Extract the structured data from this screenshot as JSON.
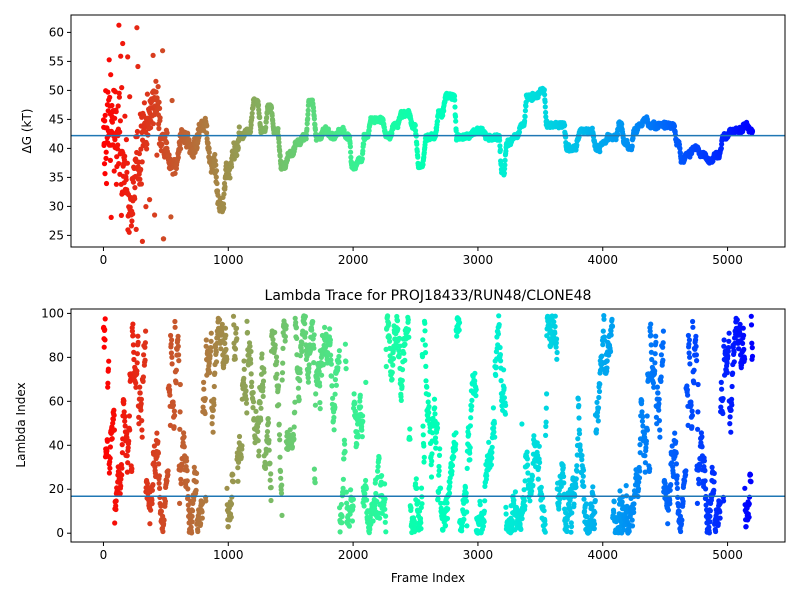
{
  "chart_data": [
    {
      "type": "scatter",
      "title": "",
      "xlabel": "",
      "ylabel": "ΔG (kT)",
      "xlim": [
        -260,
        5460
      ],
      "ylim": [
        23,
        63
      ],
      "xticks": [
        0,
        1000,
        2000,
        3000,
        4000,
        5000
      ],
      "yticks": [
        25,
        30,
        35,
        40,
        45,
        50,
        55,
        60
      ],
      "colormap": "rainbow",
      "color_encoding": "frame index (red at start, purple at end)",
      "hline": {
        "y": 42.2,
        "color": "#1f77b4"
      },
      "x_max": 5200,
      "trace_keypoints": {
        "x": [
          0,
          60,
          110,
          160,
          220,
          280,
          340,
          420,
          480,
          560,
          640,
          720,
          800,
          880,
          940,
          1000,
          1050,
          1100,
          1160,
          1220,
          1280,
          1330,
          1380,
          1440,
          1500,
          1560,
          1610,
          1660,
          1720,
          1780,
          1840,
          1900,
          1960,
          2000,
          2060,
          2100,
          2160,
          2220,
          2280,
          2340,
          2400,
          2440,
          2480,
          2540,
          2600,
          2640,
          2700,
          2760,
          2800,
          2840,
          2900,
          3000,
          3100,
          3160,
          3200,
          3240,
          3300,
          3360,
          3400,
          3460,
          3520,
          3560,
          3600,
          3680,
          3720,
          3760,
          3840,
          3900,
          3960,
          4000,
          4060,
          4100,
          4140,
          4180,
          4220,
          4260,
          4300,
          4340,
          4380,
          4440,
          4500,
          4560,
          4600,
          4640,
          4680,
          4740,
          4800,
          4860,
          4920,
          4980,
          5040,
          5100,
          5140,
          5200
        ],
        "y": [
          40,
          45,
          42,
          37,
          30,
          38,
          44,
          48,
          41,
          37,
          42,
          40,
          44,
          37,
          30,
          36,
          39,
          42,
          43,
          48,
          43,
          47,
          43,
          37,
          39,
          41,
          42,
          48,
          42,
          43,
          42,
          43,
          42,
          37,
          38,
          42,
          45,
          45,
          42,
          44,
          46,
          46,
          44,
          37,
          42,
          42,
          46,
          49,
          49,
          42,
          42,
          43,
          42,
          42,
          36,
          41,
          42,
          44,
          49,
          49,
          50,
          44,
          44,
          44,
          40,
          40,
          43,
          43,
          40,
          41,
          42,
          42,
          44,
          41,
          40,
          43,
          44,
          45,
          44,
          44,
          44,
          44,
          41,
          38,
          39,
          40,
          39,
          38,
          39,
          42,
          43,
          43,
          44,
          43
        ]
      },
      "early_scatter": {
        "x_range": [
          0,
          600
        ],
        "y_range": [
          23,
          62
        ]
      }
    },
    {
      "type": "scatter",
      "title": "Lambda Trace for PROJ18433/RUN48/CLONE48",
      "xlabel": "Frame Index",
      "ylabel": "Lambda Index",
      "xlim": [
        -260,
        5460
      ],
      "ylim": [
        -4,
        102
      ],
      "xticks": [
        0,
        1000,
        2000,
        3000,
        4000,
        5000
      ],
      "yticks": [
        0,
        20,
        40,
        60,
        80,
        100
      ],
      "colormap": "rainbow",
      "color_encoding": "frame index (red at start, purple at end)",
      "hline": {
        "y": 16.8,
        "color": "#1f77b4"
      },
      "x_max": 5200,
      "lambda_range": [
        0,
        99
      ],
      "approx_points": 2600
    }
  ]
}
